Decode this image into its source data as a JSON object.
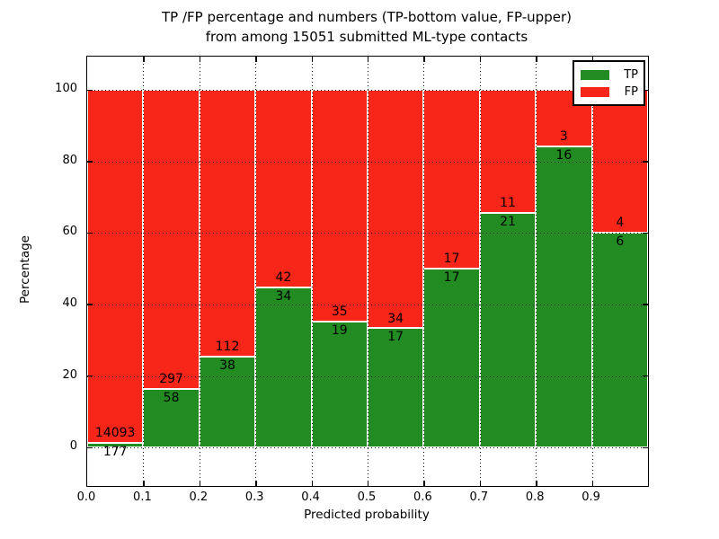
{
  "title": {
    "line1": "TP /FP percentage and numbers (TP-bottom value, FP-upper)",
    "line2": "from among 15051 submitted ML-type contacts"
  },
  "axes": {
    "xlabel": "Predicted probability",
    "ylabel": "Percentage",
    "x_tick_labels": [
      "0.0",
      "0.1",
      "0.2",
      "0.3",
      "0.4",
      "0.5",
      "0.6",
      "0.7",
      "0.8",
      "0.9"
    ],
    "y_tick_labels": [
      "0",
      "20",
      "40",
      "60",
      "80",
      "100"
    ],
    "y_tick_values": [
      0,
      20,
      40,
      60,
      80,
      100
    ]
  },
  "legend": {
    "items": [
      {
        "label": "TP",
        "color": "#228b22"
      },
      {
        "label": "FP",
        "color": "#f82619"
      }
    ]
  },
  "colors": {
    "tp": "#228b22",
    "fp": "#f82619",
    "grid": "#000000",
    "background": "#ffffff"
  },
  "chart_data": {
    "type": "bar",
    "subtype": "stacked-percentage",
    "title": "TP /FP percentage and numbers (TP-bottom value, FP-upper) from among 15051 submitted ML-type contacts",
    "xlabel": "Predicted probability",
    "ylabel": "Percentage",
    "total_contacts": 15051,
    "bin_edges": [
      0.0,
      0.1,
      0.2,
      0.3,
      0.4,
      0.5,
      0.6,
      0.7,
      0.8,
      0.9,
      1.0
    ],
    "series": [
      {
        "name": "TP",
        "position": "bottom",
        "color": "#228b22",
        "counts": [
          177,
          58,
          38,
          34,
          19,
          17,
          17,
          21,
          16,
          6
        ]
      },
      {
        "name": "FP",
        "position": "top",
        "color": "#f82619",
        "counts": [
          14093,
          297,
          112,
          42,
          35,
          34,
          17,
          11,
          3,
          4
        ]
      }
    ],
    "tp_percent": [
      1.24,
      16.34,
      25.33,
      44.74,
      35.19,
      33.33,
      50.0,
      65.63,
      84.21,
      60.0
    ],
    "xlim": [
      0.0,
      1.0
    ],
    "ylim": [
      -10.8,
      109.4
    ],
    "grid": true,
    "grid_style": "dotted",
    "legend_position": "upper right"
  }
}
